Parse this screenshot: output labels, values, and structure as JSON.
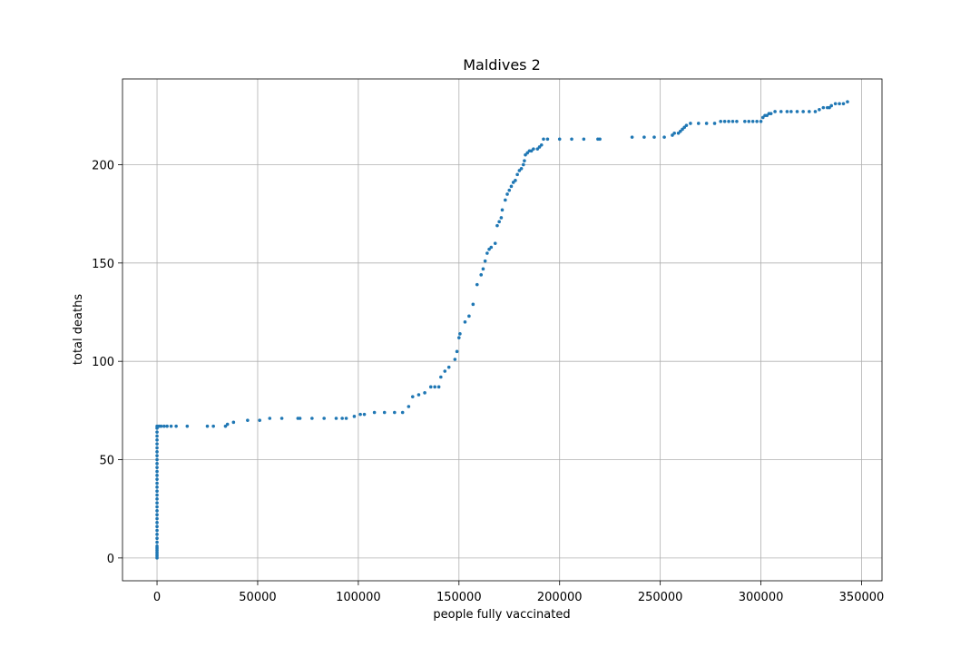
{
  "chart_data": {
    "type": "scatter",
    "title": "Maldives 2",
    "x_label": "people fully vaccinated",
    "y_label": "total deaths",
    "color": "#1f77b4",
    "grid": true,
    "xlim": [
      -17150,
      360150
    ],
    "ylim": [
      -11.6,
      243.6
    ],
    "xticks": [
      0,
      50000,
      100000,
      150000,
      200000,
      250000,
      300000,
      350000
    ],
    "yticks": [
      0,
      50,
      100,
      150,
      200
    ],
    "x": [
      0,
      0,
      0,
      0,
      0,
      0,
      0,
      0,
      0,
      0,
      0,
      0,
      0,
      0,
      0,
      0,
      0,
      0,
      0,
      0,
      0,
      0,
      0,
      0,
      0,
      0,
      0,
      0,
      0,
      0,
      0,
      0,
      0,
      0,
      0,
      0,
      0,
      0,
      1000,
      2000,
      3500,
      5000,
      7000,
      9500,
      15000,
      25000,
      28000,
      34000,
      35000,
      38000,
      45000,
      51000,
      56000,
      62000,
      70000,
      71000,
      77000,
      83000,
      89000,
      92000,
      94000,
      98000,
      101000,
      103000,
      108000,
      113000,
      118000,
      122000,
      125000,
      127000,
      130000,
      133000,
      136000,
      138000,
      140000,
      141000,
      143000,
      145000,
      148000,
      149000,
      150000,
      150500,
      153000,
      155000,
      157000,
      159000,
      161000,
      162000,
      163000,
      164000,
      165000,
      166000,
      168000,
      169000,
      170000,
      171000,
      171500,
      173000,
      174000,
      175000,
      176000,
      177000,
      178000,
      179000,
      180000,
      181000,
      182000,
      182500,
      183000,
      184000,
      185000,
      186000,
      187000,
      189000,
      190000,
      191000,
      192000,
      194000,
      200000,
      206000,
      212000,
      219000,
      220000,
      236000,
      242000,
      247000,
      252000,
      256000,
      257000,
      259000,
      260000,
      261000,
      262000,
      263000,
      265000,
      269000,
      273000,
      277000,
      280000,
      282000,
      284000,
      286000,
      288000,
      292000,
      294000,
      296000,
      298000,
      300000,
      301000,
      302000,
      303000,
      304000,
      305000,
      307000,
      310000,
      313000,
      315000,
      318000,
      321000,
      324000,
      327000,
      329000,
      331000,
      333000,
      334000,
      335000,
      337000,
      339000,
      341000,
      343000
    ],
    "y": [
      0,
      1,
      2,
      3,
      4,
      5,
      6,
      8,
      10,
      12,
      14,
      16,
      18,
      20,
      22,
      24,
      26,
      28,
      30,
      32,
      34,
      36,
      38,
      40,
      42,
      44,
      46,
      48,
      50,
      52,
      54,
      56,
      58,
      60,
      62,
      64,
      66,
      67,
      67,
      67,
      67,
      67,
      67,
      67,
      67,
      67,
      67,
      67,
      68,
      69,
      70,
      70,
      71,
      71,
      71,
      71,
      71,
      71,
      71,
      71,
      71,
      72,
      73,
      73,
      74,
      74,
      74,
      74,
      77,
      82,
      83,
      84,
      87,
      87,
      87,
      92,
      95,
      97,
      101,
      105,
      112,
      114,
      120,
      123,
      129,
      139,
      144,
      147,
      151,
      155,
      157,
      158,
      160,
      169,
      171,
      173,
      177,
      182,
      185,
      187,
      189,
      191,
      192,
      195,
      197,
      198,
      200,
      202,
      205,
      206,
      207,
      207,
      208,
      208,
      209,
      210,
      213,
      213,
      213,
      213,
      213,
      213,
      213,
      214,
      214,
      214,
      214,
      215,
      216,
      216,
      217,
      218,
      219,
      220,
      221,
      221,
      221,
      221,
      222,
      222,
      222,
      222,
      222,
      222,
      222,
      222,
      222,
      222,
      224,
      225,
      225,
      226,
      226,
      227,
      227,
      227,
      227,
      227,
      227,
      227,
      227,
      228,
      229,
      229,
      229,
      230,
      231,
      231,
      231,
      232
    ]
  }
}
